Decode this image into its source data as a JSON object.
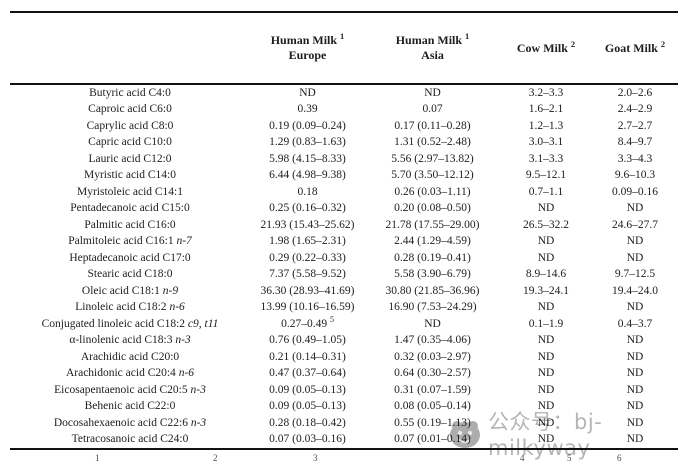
{
  "watermark": {
    "text": "公众号：bj-milkyway"
  },
  "table": {
    "column_headers": [
      {
        "title": "Human Milk",
        "sup": "1",
        "subtitle": "Europe"
      },
      {
        "title": "Human Milk",
        "sup": "1",
        "subtitle": "Asia"
      },
      {
        "title": "Cow Milk",
        "sup": "2"
      },
      {
        "title": "Goat Milk",
        "sup": "2"
      }
    ],
    "rows": [
      {
        "label": "Butyric acid C4:0",
        "europe": "ND",
        "asia": "ND",
        "cow": "3.2–3.3",
        "goat": "2.0–2.6"
      },
      {
        "label": "Caproic acid C6:0",
        "europe": "0.39",
        "asia": "0.07",
        "cow": "1.6–2.1",
        "goat": "2.4–2.9"
      },
      {
        "label": "Caprylic acid C8:0",
        "europe": "0.19 (0.09–0.24)",
        "asia": "0.17 (0.11–0.28)",
        "cow": "1.2–1.3",
        "goat": "2.7–2.7"
      },
      {
        "label": "Capric acid C10:0",
        "europe": "1.29 (0.83–1.63)",
        "asia": "1.31 (0.52–2.48)",
        "cow": "3.0–3.1",
        "goat": "8.4–9.7"
      },
      {
        "label": "Lauric acid C12:0",
        "europe": "5.98 (4.15–8.33)",
        "asia": "5.56 (2.97–13.82)",
        "cow": "3.1–3.3",
        "goat": "3.3–4.3"
      },
      {
        "label": "Myristic acid C14:0",
        "europe": "6.44 (4.98–9.38)",
        "asia": "5.70 (3.50–12.12)",
        "cow": "9.5–12.1",
        "goat": "9.6–10.3"
      },
      {
        "label": "Myristoleic acid C14:1",
        "europe": "0.18",
        "asia": "0.26 (0.03–1.11)",
        "cow": "0.7–1.1",
        "goat": "0.09–0.16"
      },
      {
        "label": "Pentadecanoic acid C15:0",
        "europe": "0.25 (0.16–0.32)",
        "asia": "0.20 (0.08–0.50)",
        "cow": "ND",
        "goat": "ND"
      },
      {
        "label": "Palmitic acid C16:0",
        "europe": "21.93 (15.43–25.62)",
        "asia": "21.78 (17.55–29.00)",
        "cow": "26.5–32.2",
        "goat": "24.6–27.7"
      },
      {
        "label": "Palmitoleic acid C16:1",
        "label_italic": "n-7",
        "europe": "1.98 (1.65–2.31)",
        "asia": "2.44 (1.29–4.59)",
        "cow": "ND",
        "goat": "ND"
      },
      {
        "label": "Heptadecanoic acid C17:0",
        "europe": "0.29 (0.22–0.33)",
        "asia": "0.28 (0.19–0.41)",
        "cow": "ND",
        "goat": "ND"
      },
      {
        "label": "Stearic acid C18:0",
        "europe": "7.37 (5.58–9.52)",
        "asia": "5.58 (3.90–6.79)",
        "cow": "8.9–14.6",
        "goat": "9.7–12.5"
      },
      {
        "label": "Oleic acid C18:1",
        "label_italic": "n-9",
        "europe": "36.30 (28.93–41.69)",
        "asia": "30.80 (21.85–36.96)",
        "cow": "19.3–24.1",
        "goat": "19.4–24.0"
      },
      {
        "label": "Linoleic acid C18:2",
        "label_italic": "n-6",
        "europe": "13.99 (10.16–16.59)",
        "asia": "16.90 (7.53–24.29)",
        "cow": "ND",
        "goat": "ND"
      },
      {
        "label": "Conjugated linoleic acid C18:2",
        "label_italic": "c9, t11",
        "europe": "0.27–0.49",
        "europe_sup": "5",
        "asia": "ND",
        "cow": "0.1–1.9",
        "goat": "0.4–3.7"
      },
      {
        "label": "α-linolenic acid C18:3",
        "label_italic": "n-3",
        "europe": "0.76 (0.49–1.05)",
        "asia": "1.47 (0.35–4.06)",
        "cow": "ND",
        "goat": "ND"
      },
      {
        "label": "Arachidic acid C20:0",
        "europe": "0.21 (0.14–0.31)",
        "asia": "0.32 (0.03–2.97)",
        "cow": "ND",
        "goat": "ND"
      },
      {
        "label": "Arachidonic acid C20:4",
        "label_italic": "n-6",
        "europe": "0.47 (0.37–0.64)",
        "asia": "0.64 (0.30–2.57)",
        "cow": "ND",
        "goat": "ND"
      },
      {
        "label": "Eicosapentaenoic acid C20:5",
        "label_italic": "n-3",
        "europe": "0.09 (0.05–0.13)",
        "asia": "0.31 (0.07–1.59)",
        "cow": "ND",
        "goat": "ND"
      },
      {
        "label": "Behenic acid C22:0",
        "europe": "0.09 (0.05–0.13)",
        "asia": "0.08 (0.05–0.14)",
        "cow": "ND",
        "goat": "ND"
      },
      {
        "label": "Docosahexaenoic acid C22:6",
        "label_italic": "n-3",
        "europe": "0.28 (0.18–0.42)",
        "asia": "0.55 (0.19–1.13)",
        "cow": "ND",
        "goat": "ND"
      },
      {
        "label": "Tetracosanoic acid C24:0",
        "europe": "0.07 (0.03–0.16)",
        "asia": "0.07 (0.01–0.14)",
        "cow": "ND",
        "goat": "ND"
      }
    ]
  },
  "footnote_markers": [
    "1",
    "2",
    "3",
    "4",
    "5",
    "6"
  ]
}
